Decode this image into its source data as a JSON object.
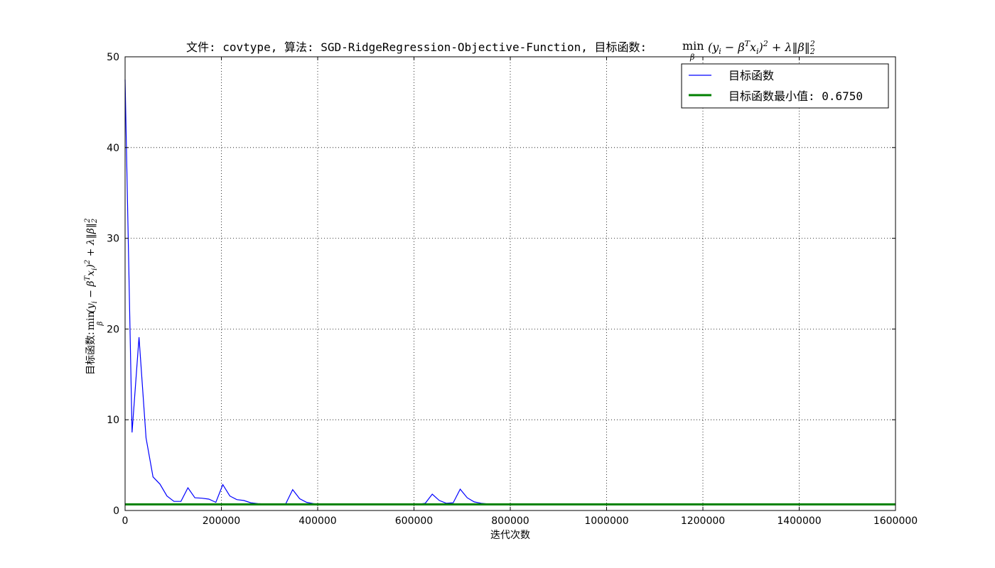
{
  "chart_data": {
    "type": "line",
    "title_prefix": "文件: covtype, 算法: SGD-RidgeRegression-Objective-Function, 目标函数:",
    "formula": {
      "op": "min",
      "op_sub": "β",
      "body": "(y",
      "body_sub": "i",
      "body_mid": " − β",
      "body_sup": "T",
      "body_x": "x",
      "body_x_sub": "i",
      "body_tail": ")",
      "body_tail_sup": "2",
      "reg": " + λ‖β‖",
      "reg_sub": "2",
      "reg_sup": "2"
    },
    "xlabel": "迭代次数",
    "ylabel_prefix": "目标函数:",
    "xlim": [
      0,
      1600000
    ],
    "ylim": [
      0,
      50
    ],
    "x_ticks": [
      0,
      200000,
      400000,
      600000,
      800000,
      1000000,
      1200000,
      1400000,
      1600000
    ],
    "y_ticks": [
      0,
      10,
      20,
      30,
      40,
      50
    ],
    "grid": true,
    "legend_position": "top-right",
    "series": [
      {
        "name": "目标函数",
        "color": "#0000ff",
        "x": [
          0,
          14500,
          29000,
          43500,
          58000,
          72500,
          87000,
          101500,
          116000,
          130500,
          145000,
          159500,
          174000,
          188500,
          203000,
          217500,
          232000,
          246500,
          261000,
          275500,
          290000,
          304500,
          319000,
          333500,
          348000,
          362500,
          377000,
          391500,
          406000,
          420500,
          435000,
          449500,
          464000,
          478500,
          493000,
          507500,
          522000,
          536500,
          551000,
          565500,
          580000,
          594500,
          609000,
          623500,
          638000,
          652500,
          667000,
          681500,
          696000,
          710500,
          725000,
          739500,
          754000,
          768500,
          783000,
          797500,
          812000,
          900000,
          1000000,
          1100000,
          1200000,
          1300000,
          1400000,
          1500000,
          1600000
        ],
        "y": [
          47.5,
          8.6,
          19.1,
          8.0,
          3.7,
          2.9,
          1.6,
          1.0,
          1.0,
          2.5,
          1.4,
          1.35,
          1.25,
          0.9,
          2.85,
          1.6,
          1.2,
          1.1,
          0.85,
          0.75,
          0.72,
          0.71,
          0.71,
          0.71,
          2.3,
          1.3,
          0.9,
          0.75,
          0.7,
          0.69,
          0.68,
          0.68,
          0.68,
          0.68,
          0.68,
          0.68,
          0.68,
          0.68,
          0.68,
          0.68,
          0.68,
          0.68,
          0.68,
          0.8,
          1.8,
          1.1,
          0.8,
          0.85,
          2.35,
          1.4,
          0.95,
          0.8,
          0.72,
          0.7,
          0.69,
          0.68,
          0.68,
          0.68,
          0.68,
          0.68,
          0.68,
          0.68,
          0.68,
          0.68,
          0.68
        ]
      },
      {
        "name": "目标函数最小值: 0.6750",
        "color": "#008000",
        "value": 0.675
      }
    ]
  }
}
